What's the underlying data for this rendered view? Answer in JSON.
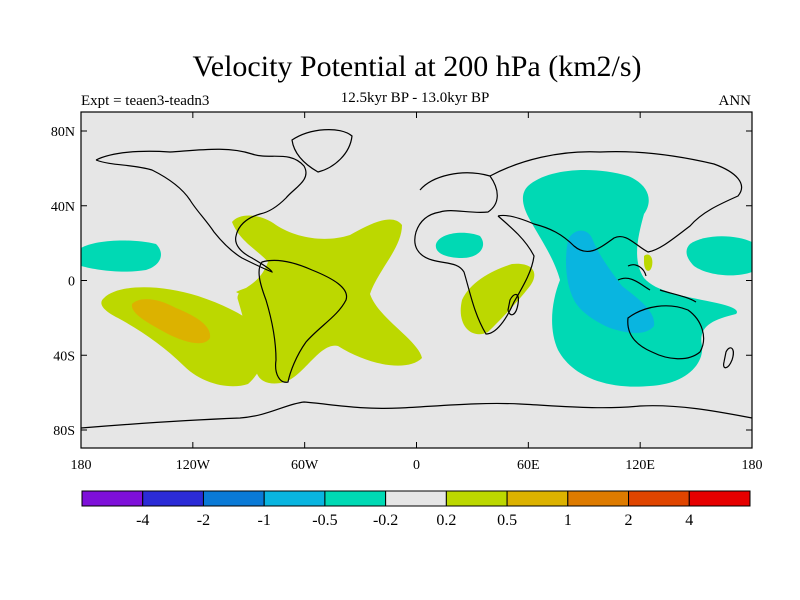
{
  "title": "Velocity Potential at 200 hPa (km2/s)",
  "subtitle": "12.5kyr BP - 13.0kyr BP",
  "experiment": "Expt = teaen3-teadn3",
  "period": "ANN",
  "lat_ticks": [
    "80N",
    "40N",
    "0",
    "40S",
    "80S"
  ],
  "lon_ticks": [
    "180",
    "120W",
    "60W",
    "0",
    "60E",
    "120E",
    "180"
  ],
  "colorbar": {
    "colors": [
      "#7e10d9",
      "#2b2bd6",
      "#0a7ad6",
      "#09b5e0",
      "#00d9b4",
      "#e6e6e6",
      "#bcd800",
      "#dcb200",
      "#de7b00",
      "#e04500",
      "#e60000"
    ],
    "labels": [
      "-4",
      "-2",
      "-1",
      "-0.5",
      "-0.2",
      "0.2",
      "0.5",
      "1",
      "2",
      "4"
    ]
  },
  "colors": {
    "background": "#e6e6e6",
    "pos_weak": "#bcd800",
    "pos_mid": "#dcb200",
    "neg_weak": "#00d9b4",
    "neg_mid": "#09b5e0"
  }
}
